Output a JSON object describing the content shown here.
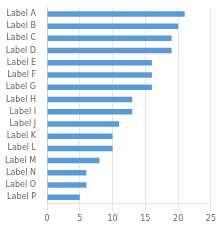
{
  "chart_data": {
    "type": "bar",
    "orientation": "horizontal",
    "categories": [
      "Label A",
      "Label B",
      "Label C",
      "Label D",
      "Label E",
      "Label F",
      "Label G",
      "Label H",
      "Label I",
      "Label J",
      "Label K",
      "Label L",
      "Label M",
      "Label N",
      "Label O",
      "Label P"
    ],
    "values": [
      21,
      20,
      19,
      19,
      16,
      16,
      16,
      13,
      13,
      11,
      10,
      10,
      8,
      6,
      6,
      5
    ],
    "color": "#5B9BD5",
    "xlim": [
      0,
      25
    ],
    "xticks": [
      0,
      5,
      10,
      15,
      20,
      25
    ],
    "grid": true
  }
}
